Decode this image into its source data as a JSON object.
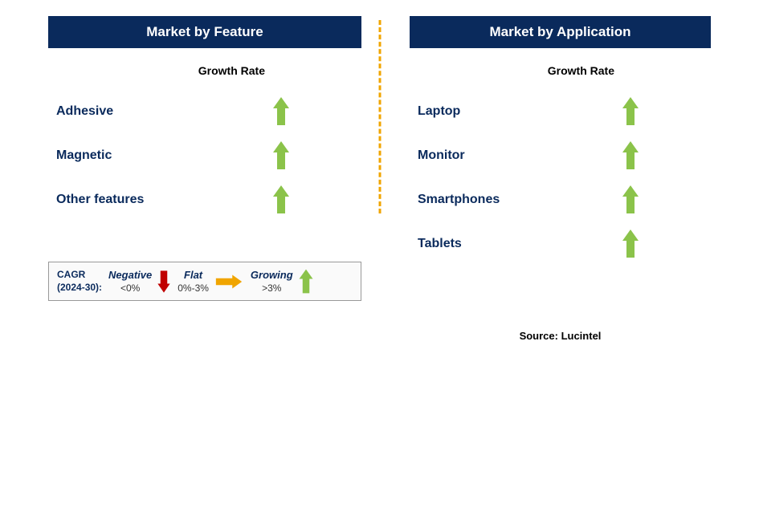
{
  "colors": {
    "header_bg": "#0a2a5c",
    "header_text": "#ffffff",
    "label_text": "#0a2a5c",
    "growth_label_text": "#000000",
    "divider": "#f0a500",
    "up_arrow": "#8bc34a",
    "down_arrow": "#c00000",
    "right_arrow": "#f0a500",
    "legend_border": "#999999",
    "legend_bg": "#fafafa",
    "background": "#ffffff"
  },
  "left": {
    "title": "Market by Feature",
    "growth_label": "Growth Rate",
    "items": [
      {
        "label": "Adhesive",
        "trend": "up"
      },
      {
        "label": "Magnetic",
        "trend": "up"
      },
      {
        "label": "Other features",
        "trend": "up"
      }
    ]
  },
  "right": {
    "title": "Market by Application",
    "growth_label": "Growth Rate",
    "items": [
      {
        "label": "Laptop",
        "trend": "up"
      },
      {
        "label": "Monitor",
        "trend": "up"
      },
      {
        "label": "Smartphones",
        "trend": "up"
      },
      {
        "label": "Tablets",
        "trend": "up"
      }
    ]
  },
  "legend": {
    "title_line1": "CAGR",
    "title_line2": "(2024-30):",
    "segments": [
      {
        "term": "Negative",
        "range": "<0%",
        "icon": "down"
      },
      {
        "term": "Flat",
        "range": "0%-3%",
        "icon": "right"
      },
      {
        "term": "Growing",
        "range": ">3%",
        "icon": "up"
      }
    ]
  },
  "source": "Source: Lucintel"
}
